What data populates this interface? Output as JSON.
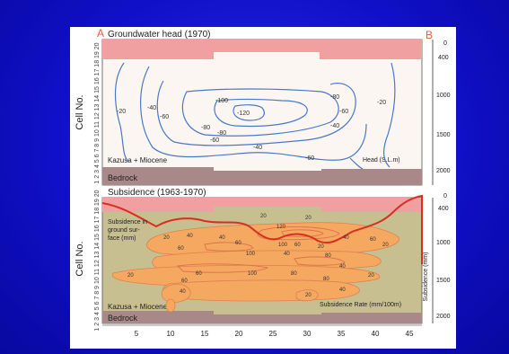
{
  "top": {
    "letter_a": "A",
    "title": "Groundwater head (1970)",
    "letter_b": "B",
    "contour_labels": [
      "-20",
      "-40",
      "-60",
      "-100",
      "-120",
      "-80",
      "-60",
      "-40",
      "-20",
      "-80",
      "-60",
      "-40",
      "-60",
      "-80"
    ],
    "formation": "Kazusa + Miocene",
    "bedrock": "Bedrock",
    "legend": "Head (S.L.m)"
  },
  "bottom": {
    "title": "Subsidence (1963-1970)",
    "note_line1": "Subsidence in",
    "note_line2": "ground sur-",
    "note_line3": "face (mm)",
    "contour_labels": [
      "20",
      "120",
      "20",
      "40",
      "20",
      "40",
      "60",
      "100",
      "60",
      "60",
      "20",
      "40",
      "60",
      "80",
      "100",
      "40",
      "20",
      "80",
      "40",
      "100",
      "60",
      "20",
      "20",
      "80",
      "40",
      "20",
      "60",
      "40"
    ],
    "formation": "Kazusa + Miocene",
    "bedrock": "Bedrock",
    "legend": "Subsidence Rate (mm/100m)"
  },
  "y_axis_left_label": "Cell No.",
  "cell_numbers": "1 2 3 4 5 6 7 8 9 10 11 12 13 14 15 16 17 18 19 20",
  "right_axis_top": [
    "0",
    "400",
    "1000",
    "1500",
    "2000"
  ],
  "right_axis_bottom": [
    "0",
    "400",
    "1000",
    "1500",
    "2000"
  ],
  "right_axis_bottom_label": "Subsidence (mm)",
  "x_ticks": [
    "5",
    "10",
    "15",
    "20",
    "25",
    "30",
    "35",
    "40",
    "45"
  ],
  "colors": {
    "background": "#1212c8",
    "contour": "#4a78c8",
    "subsidence_fill": "#f4a860",
    "ground_band": "#f0a0a0",
    "bedrock": "#a88888",
    "sediment": "#c8bf90",
    "subsidence_line": "#d83020"
  }
}
